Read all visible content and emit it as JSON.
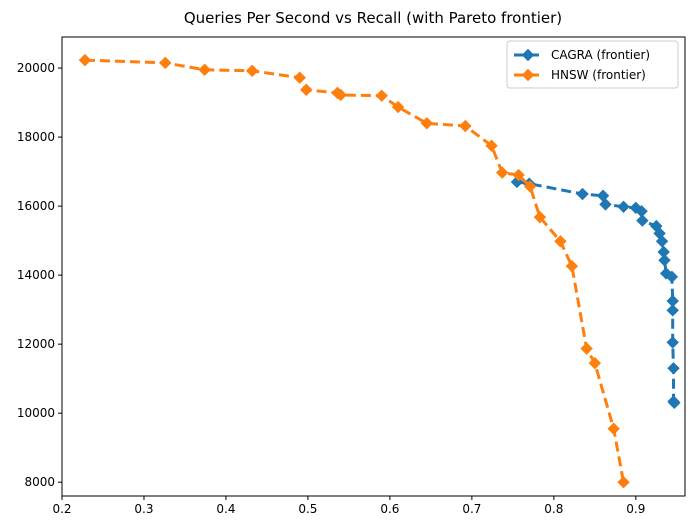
{
  "chart_data": {
    "type": "line",
    "title": "Queries Per Second vs Recall (with Pareto frontier)",
    "xlabel": "",
    "ylabel": "",
    "xlim": [
      0.2,
      0.96
    ],
    "ylim": [
      7600,
      20900
    ],
    "x_ticks": [
      0.2,
      0.3,
      0.4,
      0.5,
      0.6,
      0.7,
      0.8,
      0.9
    ],
    "y_ticks": [
      8000,
      10000,
      12000,
      14000,
      16000,
      18000,
      20000
    ],
    "grid": false,
    "legend_position": "top-right",
    "series": [
      {
        "name": "CAGRA (frontier)",
        "color": "#1f77b4",
        "line_style": "dashed",
        "marker": "diamond",
        "points": [
          [
            0.755,
            16700
          ],
          [
            0.77,
            16650
          ],
          [
            0.835,
            16350
          ],
          [
            0.86,
            16300
          ],
          [
            0.863,
            16050
          ],
          [
            0.885,
            15980
          ],
          [
            0.9,
            15950
          ],
          [
            0.907,
            15850
          ],
          [
            0.908,
            15580
          ],
          [
            0.925,
            15420
          ],
          [
            0.929,
            15210
          ],
          [
            0.932,
            14980
          ],
          [
            0.934,
            14670
          ],
          [
            0.935,
            14430
          ],
          [
            0.937,
            14050
          ],
          [
            0.944,
            13950
          ],
          [
            0.945,
            13250
          ],
          [
            0.945,
            12980
          ],
          [
            0.945,
            12050
          ],
          [
            0.946,
            11300
          ],
          [
            0.946,
            10340
          ],
          [
            0.947,
            10300
          ]
        ]
      },
      {
        "name": "HNSW (frontier)",
        "color": "#ff7f0e",
        "line_style": "dashed",
        "marker": "diamond",
        "points": [
          [
            0.228,
            20230
          ],
          [
            0.326,
            20150
          ],
          [
            0.374,
            19950
          ],
          [
            0.432,
            19920
          ],
          [
            0.49,
            19720
          ],
          [
            0.498,
            19370
          ],
          [
            0.536,
            19280
          ],
          [
            0.54,
            19220
          ],
          [
            0.59,
            19200
          ],
          [
            0.61,
            18870
          ],
          [
            0.645,
            18400
          ],
          [
            0.692,
            18320
          ],
          [
            0.724,
            17750
          ],
          [
            0.737,
            16970
          ],
          [
            0.757,
            16900
          ],
          [
            0.771,
            16570
          ],
          [
            0.783,
            15680
          ],
          [
            0.808,
            14980
          ],
          [
            0.822,
            14260
          ],
          [
            0.84,
            11870
          ],
          [
            0.85,
            11450
          ],
          [
            0.873,
            9550
          ],
          [
            0.885,
            8000
          ]
        ]
      }
    ]
  }
}
